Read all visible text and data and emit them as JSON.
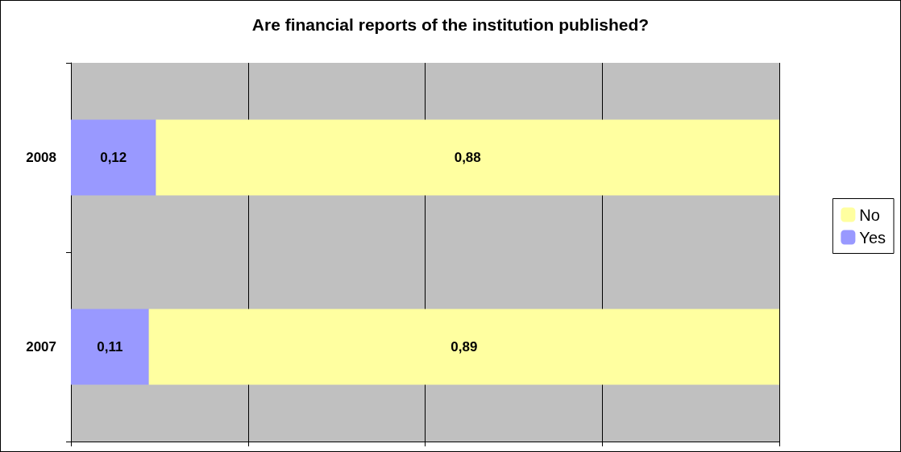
{
  "chart_data": {
    "type": "bar",
    "title": "Are financial reports of the institution published?",
    "orientation": "horizontal",
    "stacked": true,
    "categories": [
      "2008",
      "2007"
    ],
    "series": [
      {
        "name": "Yes",
        "color": "#9999ff",
        "values": [
          0.12,
          0.11
        ],
        "value_labels": [
          "0,12",
          "0,11"
        ]
      },
      {
        "name": "No",
        "color": "#ffffa0",
        "values": [
          0.88,
          0.89
        ],
        "value_labels": [
          "0,88",
          "0,89"
        ]
      }
    ],
    "tick_labels": "y",
    "grid": "x",
    "legend": "right"
  }
}
